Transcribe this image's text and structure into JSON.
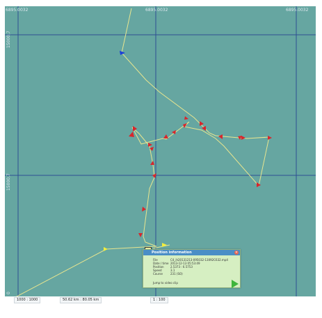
{
  "map": {
    "top_coords": [
      "6895.0032",
      "6895.0032",
      "6895.0032"
    ],
    "left_coords": [
      "15000,7",
      "15000,7",
      "0"
    ],
    "colors": {
      "sea": "#66a6a1",
      "grid": "#2d4f93",
      "track": "#e8e58f",
      "marker": "#d8262c"
    }
  },
  "popup": {
    "title": "Position information",
    "rows": [
      {
        "label": "File",
        "value": "C4_ih20131213-095032-13092C632.mp4"
      },
      {
        "label": "Date / time",
        "value": "2013-12-13 05:53:49"
      },
      {
        "label": "Position",
        "value": "2.5373 : 6.5753"
      },
      {
        "label": "Speed",
        "value": "3.1"
      },
      {
        "label": "Course",
        "value": "231   (SO)"
      }
    ],
    "jump_label": "Jump to video clip"
  },
  "status": {
    "items": [
      "1000 : 1000",
      "50.62 km : 80.05 km",
      "1 : 100"
    ]
  }
}
